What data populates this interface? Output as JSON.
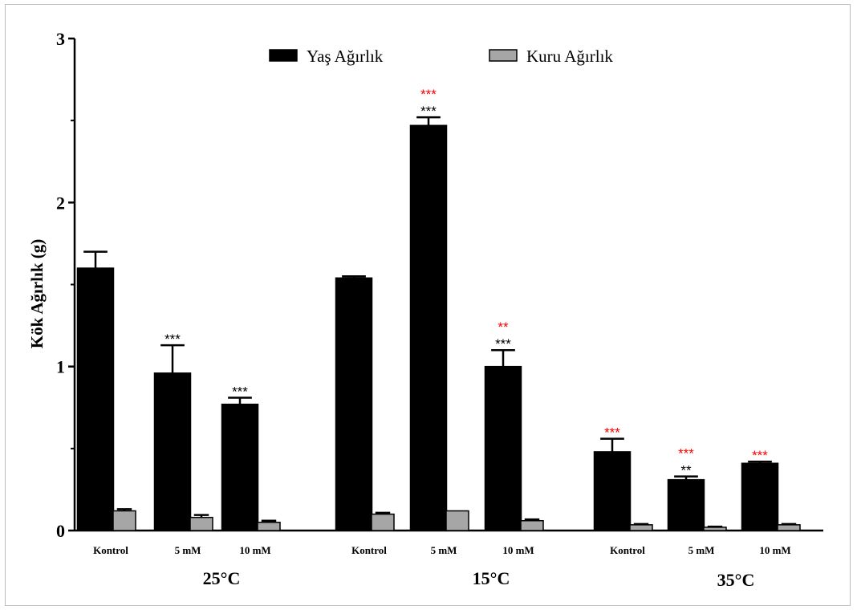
{
  "chart_data": {
    "type": "bar",
    "ylabel": "Kök Ağırlık  (g)",
    "ylim": [
      0,
      3
    ],
    "yticks": [
      "0",
      "1",
      "2",
      "3"
    ],
    "categories": [
      "Kontrol",
      "5 mM",
      "10 mM",
      "Kontrol",
      "5 mM",
      "10 mM",
      "Kontrol",
      "5 mM",
      "10 mM"
    ],
    "groups": [
      "25°C",
      "15°C",
      "35°C"
    ],
    "series": [
      {
        "name": "Yaş Ağırlık",
        "color": "#000000",
        "values": [
          1.6,
          0.96,
          0.77,
          1.54,
          2.47,
          1.0,
          0.48,
          0.31,
          0.41
        ],
        "errors": [
          0.1,
          0.17,
          0.04,
          0.01,
          0.05,
          0.1,
          0.08,
          0.02,
          0.01
        ]
      },
      {
        "name": "Kuru Ağırlık",
        "color": "#a6a6a6",
        "values": [
          0.12,
          0.08,
          0.05,
          0.1,
          0.12,
          0.06,
          0.035,
          0.02,
          0.035
        ],
        "errors": [
          0.01,
          0.015,
          0.01,
          0.008,
          0.0,
          0.008,
          0.005,
          0.004,
          0.005
        ]
      }
    ],
    "annotations": [
      {
        "index": 1,
        "black": "***",
        "red": ""
      },
      {
        "index": 2,
        "black": "***",
        "red": ""
      },
      {
        "index": 4,
        "black": "***",
        "red": "***"
      },
      {
        "index": 5,
        "black": "***",
        "red": "**"
      },
      {
        "index": 6,
        "black": "",
        "red": "***"
      },
      {
        "index": 7,
        "black": "**",
        "red": "***"
      },
      {
        "index": 8,
        "black": "",
        "red": "***"
      }
    ],
    "annotation_colors": {
      "black": "#000000",
      "red": "#ff0000"
    },
    "legend": "top-center",
    "grid": false
  }
}
